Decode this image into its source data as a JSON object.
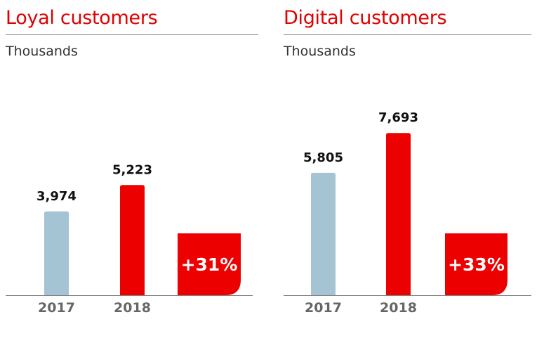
{
  "chart_data": [
    {
      "type": "bar",
      "title": "Loyal customers",
      "subtitle": "Thousands",
      "unit": "Thousands",
      "categories": [
        "2017",
        "2018"
      ],
      "values": [
        3974,
        5223
      ],
      "value_labels": [
        "3,974",
        "5,223"
      ],
      "bar_colors": [
        "#a4c3d3",
        "#ec0000"
      ],
      "growth_badge": "+31%",
      "ylim": [
        0,
        8500
      ],
      "grid": false
    },
    {
      "type": "bar",
      "title": "Digital customers",
      "subtitle": "Thousands",
      "unit": "Thousands",
      "categories": [
        "2017",
        "2018"
      ],
      "values": [
        5805,
        7693
      ],
      "value_labels": [
        "5,805",
        "7,693"
      ],
      "bar_colors": [
        "#a4c3d3",
        "#ec0000"
      ],
      "growth_badge": "+33%",
      "ylim": [
        0,
        8500
      ],
      "grid": false
    }
  ],
  "colors": {
    "brand_red": "#ec0000",
    "title_red": "#e00000",
    "bar_2017": "#a4c3d3",
    "axis_label": "#666666",
    "rule": "#808080"
  }
}
